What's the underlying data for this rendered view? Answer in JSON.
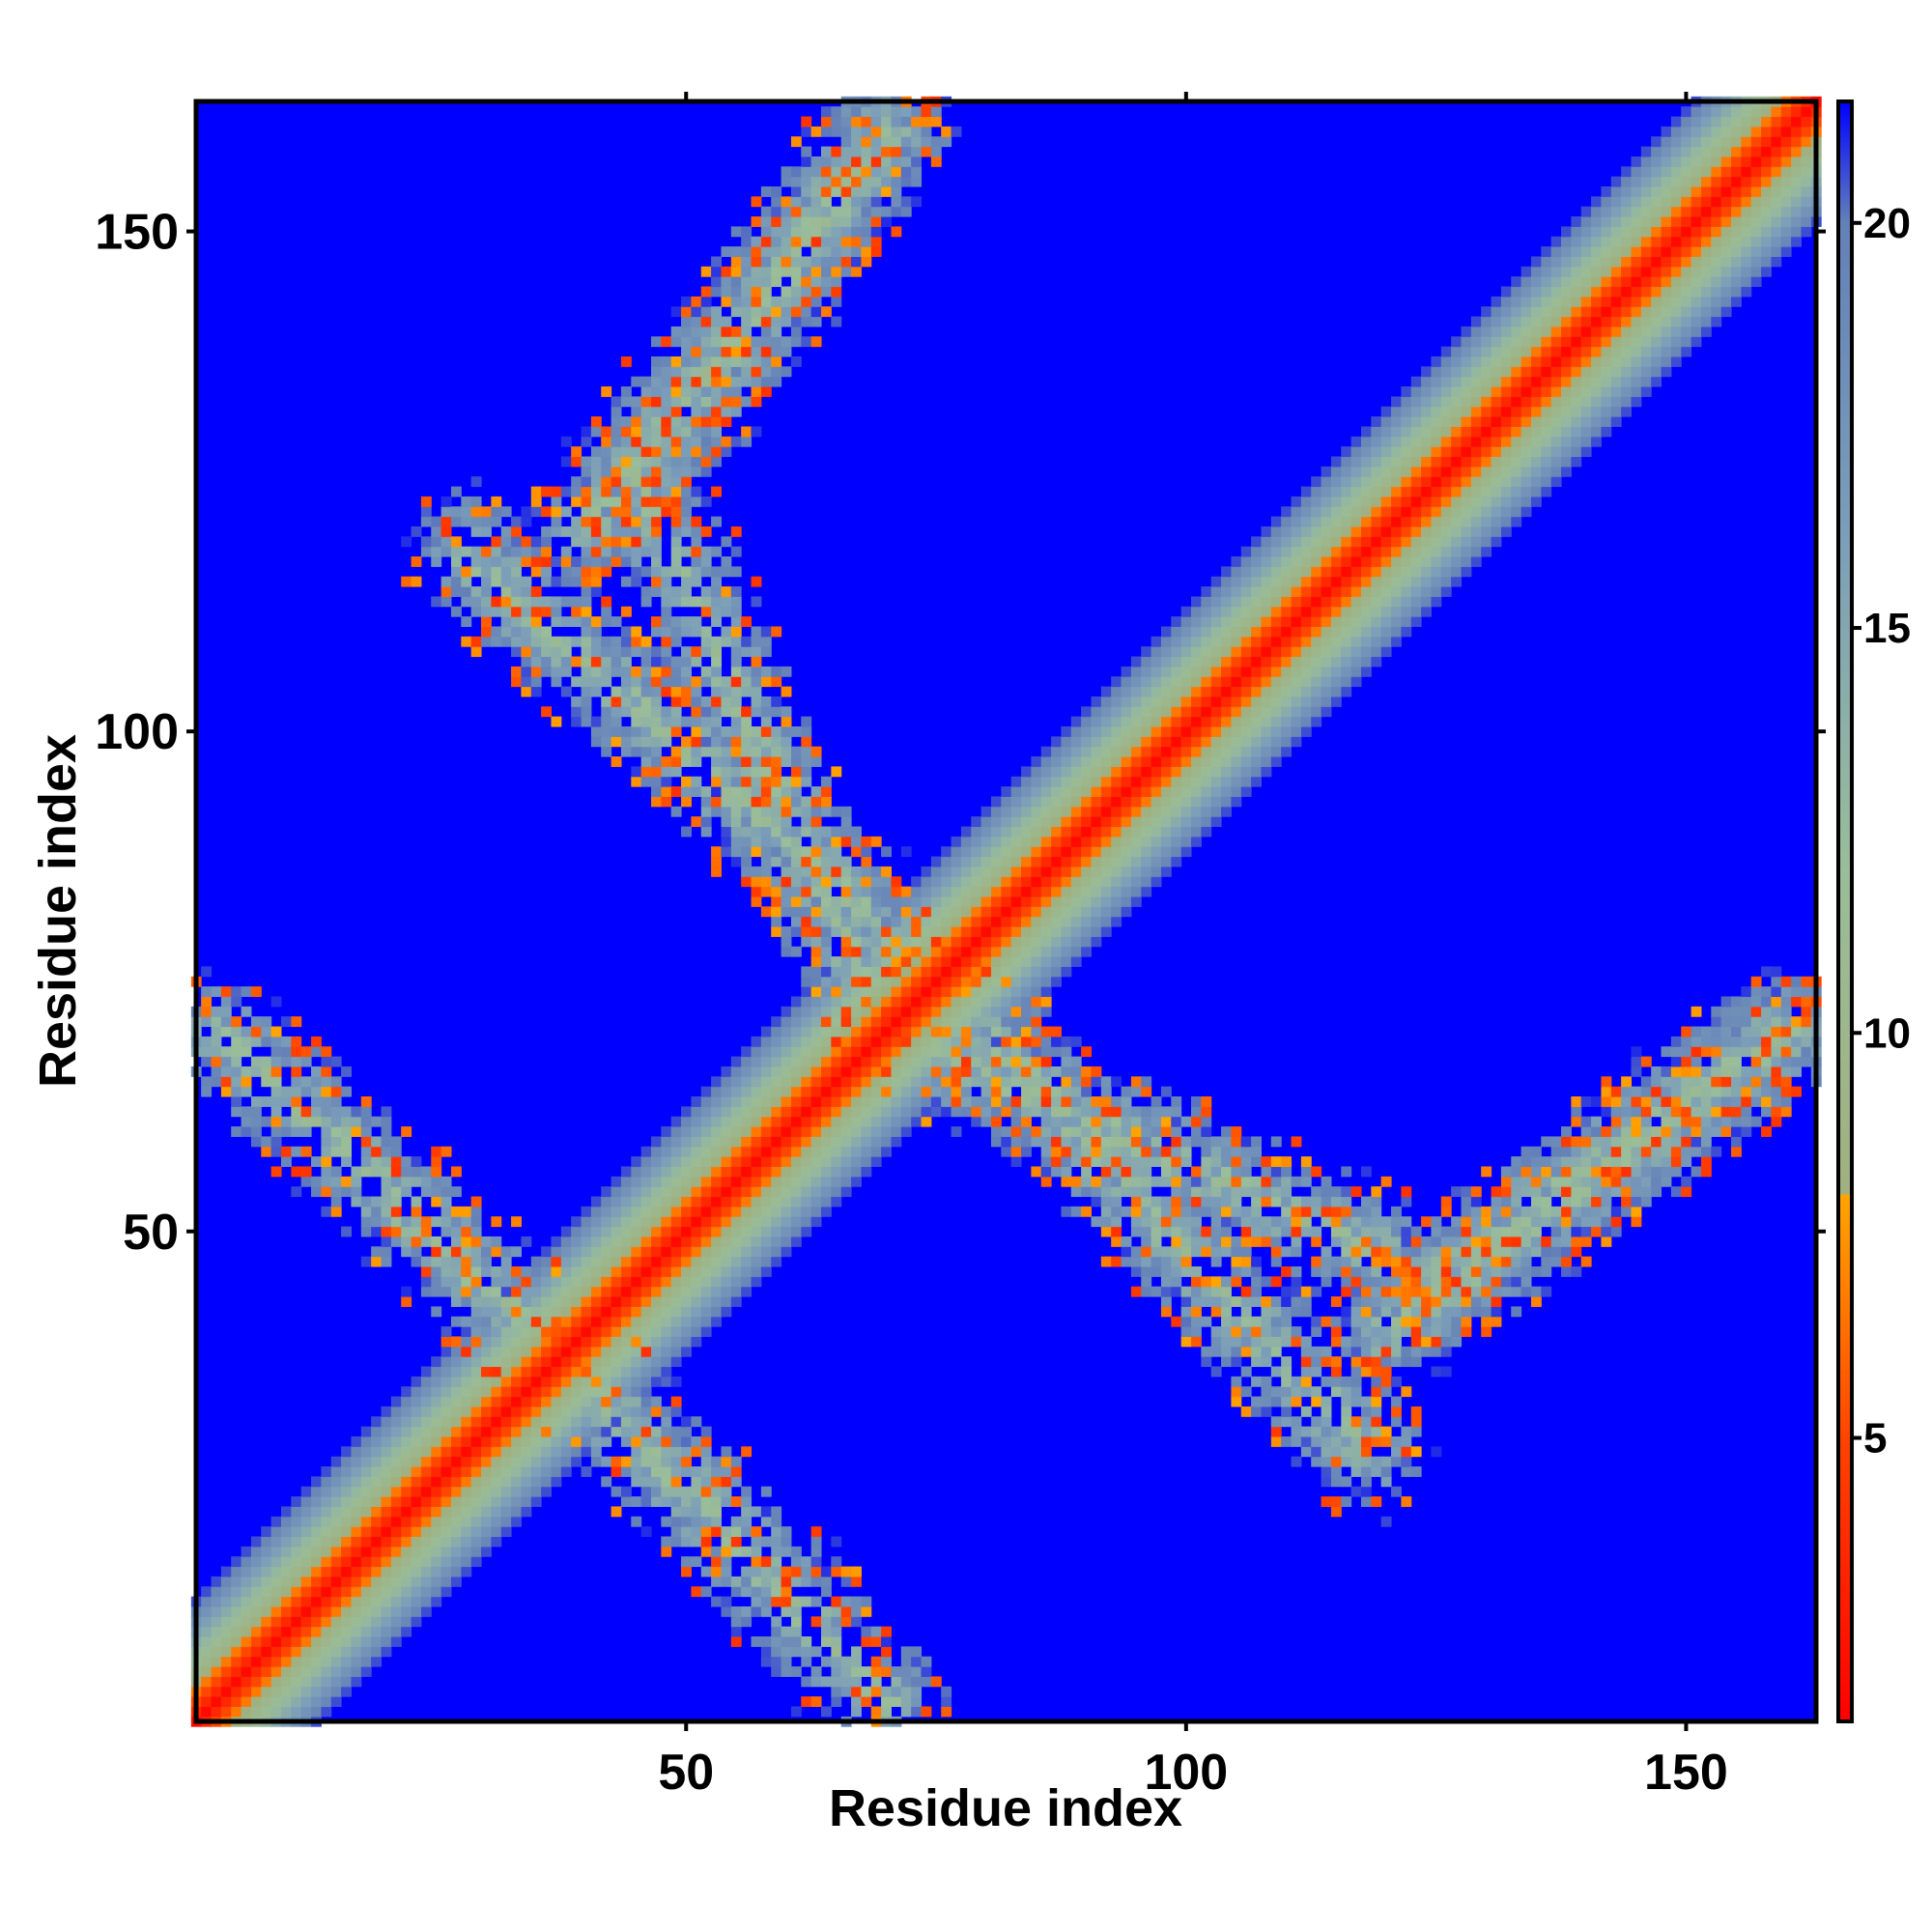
{
  "chart_data": {
    "type": "heatmap",
    "title": "",
    "xlabel": "Residue index",
    "ylabel": "Residue index",
    "xlim": [
      1,
      163
    ],
    "ylim": [
      1,
      163
    ],
    "x_ticks": [
      50,
      100,
      150
    ],
    "y_ticks": [
      50,
      100,
      150
    ],
    "x_tick_labels": [
      "50",
      "100",
      "150"
    ],
    "y_tick_labels": [
      "50",
      "100",
      "150"
    ],
    "colorbar": {
      "range": [
        1.5,
        21.5
      ],
      "ticks": [
        5,
        10,
        15,
        20
      ],
      "tick_labels": [
        "5",
        "10",
        "15",
        "20"
      ],
      "placement": "right",
      "stops": [
        {
          "value": 1.5,
          "color": "#ff0000"
        },
        {
          "value": 5,
          "color": "#ff4400"
        },
        {
          "value": 8,
          "color": "#ffa500"
        },
        {
          "value": 8.01,
          "color": "#a0b080"
        },
        {
          "value": 12,
          "color": "#9abd9a"
        },
        {
          "value": 16,
          "color": "#7d9fb8"
        },
        {
          "value": 20,
          "color": "#6480b8"
        },
        {
          "value": 21.5,
          "color": "#0000ff"
        }
      ]
    },
    "value_meaning": "pairwise residue distance; background (far pairs) value > 21",
    "contact_bands": [
      {
        "kind": "diagonal",
        "from": [
          1,
          1
        ],
        "to": [
          163,
          163
        ],
        "width": 12
      },
      {
        "kind": "anti-parallel",
        "from": [
          40,
          120
        ],
        "to": [
          70,
          160
        ],
        "width": 14
      },
      {
        "kind": "anti-parallel",
        "from": [
          120,
          40
        ],
        "to": [
          160,
          70
        ],
        "width": 14
      },
      {
        "kind": "anti-parallel",
        "from": [
          28,
          118
        ],
        "to": [
          70,
          80
        ],
        "width": 14
      },
      {
        "kind": "anti-parallel",
        "from": [
          118,
          28
        ],
        "to": [
          80,
          70
        ],
        "width": 14
      },
      {
        "kind": "anti-parallel",
        "from": [
          3,
          70
        ],
        "to": [
          35,
          40
        ],
        "width": 14
      },
      {
        "kind": "anti-parallel",
        "from": [
          70,
          3
        ],
        "to": [
          40,
          35
        ],
        "width": 14
      },
      {
        "kind": "anti-parallel",
        "from": [
          75,
          68
        ],
        "to": [
          125,
          45
        ],
        "width": 14
      },
      {
        "kind": "anti-parallel",
        "from": [
          68,
          75
        ],
        "to": [
          45,
          125
        ],
        "width": 14
      },
      {
        "kind": "anti-parallel",
        "from": [
          125,
          45
        ],
        "to": [
          160,
          70
        ],
        "width": 12
      },
      {
        "kind": "anti-parallel",
        "from": [
          45,
          125
        ],
        "to": [
          70,
          160
        ],
        "width": 12
      }
    ]
  },
  "colors": {
    "background": "#0000ff",
    "axis": "#000000"
  }
}
